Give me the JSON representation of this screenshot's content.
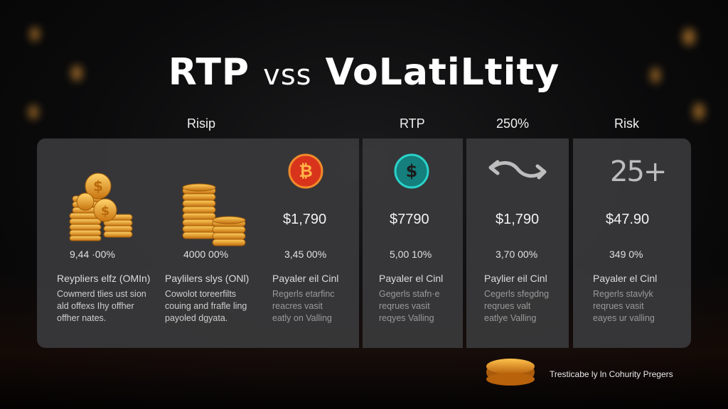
{
  "title": {
    "left": "RTP",
    "mid": "vss",
    "right": "VoLatiLtity"
  },
  "column_headers": {
    "risip": "Risip",
    "rtp": "RTP",
    "pct": "250%",
    "risk": "Risk"
  },
  "icons": {
    "coin_stack_1": "gold-coin-pile-icon",
    "coin_stack_2": "gold-coin-stack-icon",
    "bitcoin": "bitcoin-icon",
    "dollar": "dollar-coin-icon",
    "wave": "wave-arrow-icon",
    "risk_number": "25+"
  },
  "columns": [
    {
      "pct": "9,44 ·00%",
      "label": "Reypliers elfz (OMIn)",
      "desc": [
        "Cowmerd tlies ust sion",
        "ald offexs Ihy offher",
        "offher nates."
      ]
    },
    {
      "pct": "4000 00%",
      "label": "Paylilers slys (ONl)",
      "desc": [
        "Cowolot toreerfilts",
        "couing and frafle ling",
        "payoled dgyata."
      ]
    },
    {
      "price": "$1,790",
      "pct": "3,45 00%",
      "label": "Payaler eil Cinl",
      "desc": [
        "Regerls etarfinc",
        "reacres vasit",
        "eatly on Valling"
      ]
    },
    {
      "price": "$7790",
      "pct": "5,00 10%",
      "label": "Payaler el Cinl",
      "desc": [
        "Gegerls stafn·e",
        "reqrues vasit",
        "reqyes Valling"
      ]
    },
    {
      "price": "$1,790",
      "pct": "3,70 00%",
      "label": "Paylier eil Cinl",
      "desc": [
        "Cegerls sfegdng",
        "reqrues valt",
        "eatlye Valling"
      ]
    },
    {
      "price": "$47.90",
      "pct": "349 0%",
      "label": "Payaler el Cinl",
      "desc": [
        "Regerls stavlyk",
        "reqrues vasit",
        "eayes ur valling"
      ]
    }
  ],
  "footer": "Tresticabe ly ln Cohurity Pregers",
  "colors": {
    "gold": "#f0a030",
    "bitcoin_red": "#d8341c",
    "teal": "#2ad1c8",
    "panel": "#3a3a3c"
  }
}
